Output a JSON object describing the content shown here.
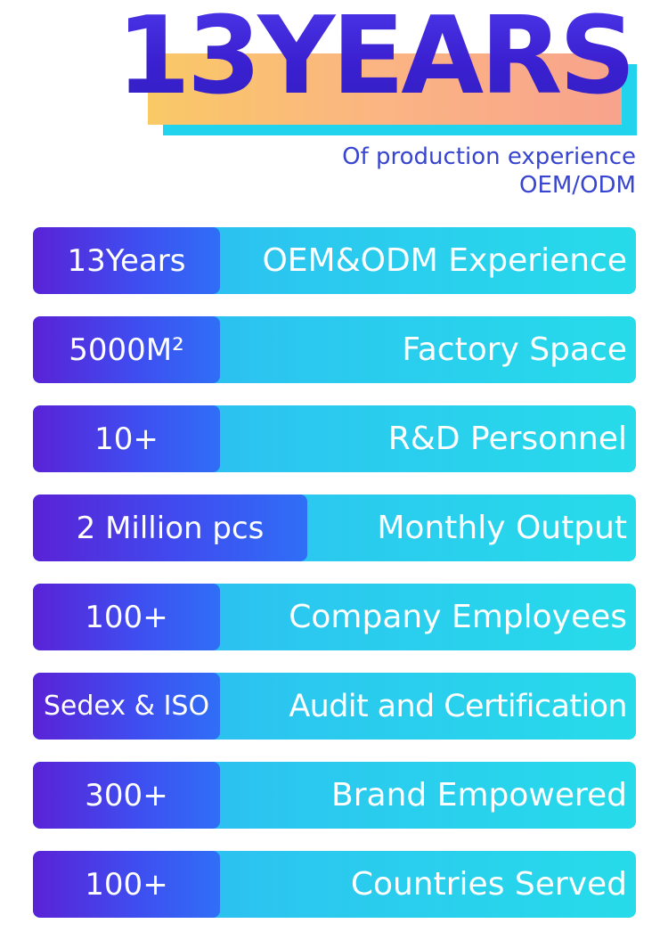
{
  "header": {
    "title": "13YEARS",
    "subtitle_line1": "Of production experience",
    "subtitle_line2": "OEM/ODM",
    "colors": {
      "title": "#3a20d0",
      "subtitle": "#3845d0",
      "highlight_warm": "#f9c966",
      "highlight_cyan": "#22d3ee"
    }
  },
  "stats": [
    {
      "value": "13Years",
      "label": "OEM&ODM Experience"
    },
    {
      "value": "5000M²",
      "label": "Factory Space"
    },
    {
      "value": "10+",
      "label": "R&D Personnel"
    },
    {
      "value": "2 Million pcs",
      "label": "Monthly Output"
    },
    {
      "value": "100+",
      "label": "Company Employees"
    },
    {
      "value": "Sedex & ISO",
      "label": "Audit and Certification"
    },
    {
      "value": "300+",
      "label": "Brand Empowered"
    },
    {
      "value": "100+",
      "label": "Countries Served"
    }
  ],
  "colors": {
    "value_badge_start": "#5a22d6",
    "value_badge_end": "#2f6ff6",
    "row_start": "#2fb1f2",
    "row_end": "#27dbea",
    "text": "#ffffff"
  }
}
